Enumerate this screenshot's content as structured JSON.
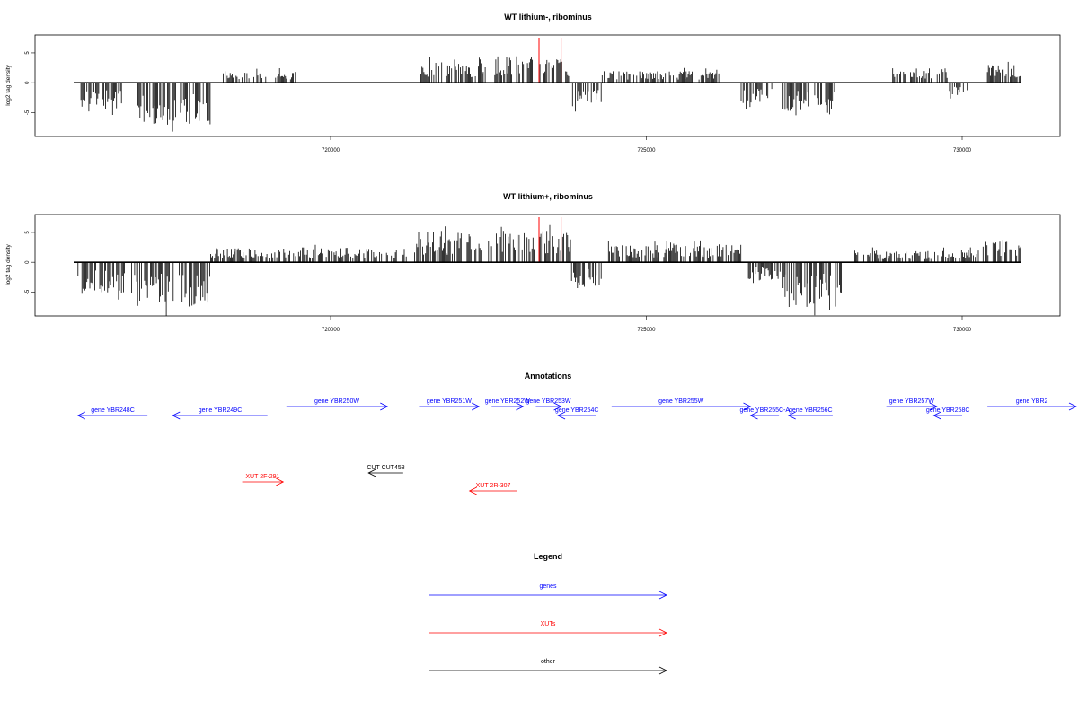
{
  "colors": {
    "genes": "#0000ff",
    "xuts": "#ff0000",
    "other": "#000000",
    "bars": "#000000",
    "markers": "#ff0000"
  },
  "chart_data": [
    {
      "type": "bar",
      "title": "WT lithium-, ribominus",
      "ylabel": "log2 tag density",
      "xlim": [
        716000,
        732000
      ],
      "ylim": [
        -9,
        8
      ],
      "xticks": [
        720000,
        725000,
        730000
      ],
      "xtick_labels": [
        "720000",
        "725000",
        "730000"
      ],
      "yticks": [
        -5,
        0,
        5
      ],
      "ytick_labels": [
        "-5",
        "0",
        "5"
      ],
      "markers_x": [
        723300,
        723650
      ],
      "segments": [
        {
          "x": [
            716000,
            716700
          ],
          "y": -4.5
        },
        {
          "x": [
            716950,
            718100
          ],
          "y": -7.0
        },
        {
          "x": [
            718300,
            719500
          ],
          "y": 2.0
        },
        {
          "x": [
            721400,
            722500
          ],
          "y": 3.5
        },
        {
          "x": [
            722600,
            723200
          ],
          "y": 4.5
        },
        {
          "x": [
            723300,
            723800
          ],
          "y": 4.0
        },
        {
          "x": [
            723800,
            724300
          ],
          "y": -4.0
        },
        {
          "x": [
            724300,
            726200
          ],
          "y": 2.0
        },
        {
          "x": [
            726500,
            727000
          ],
          "y": -3.5
        },
        {
          "x": [
            727150,
            728000
          ],
          "y": -5.5
        },
        {
          "x": [
            728900,
            729800
          ],
          "y": 2.5
        },
        {
          "x": [
            729800,
            730100
          ],
          "y": -2.5
        },
        {
          "x": [
            730400,
            731000
          ],
          "y": 3.0
        }
      ]
    },
    {
      "type": "bar",
      "title": "WT lithium+, ribominus",
      "ylabel": "log2 tag density",
      "xlim": [
        716000,
        732000
      ],
      "ylim": [
        -9,
        8
      ],
      "xticks": [
        720000,
        725000,
        730000
      ],
      "xtick_labels": [
        "720000",
        "725000",
        "730000"
      ],
      "yticks": [
        -5,
        0,
        5
      ],
      "ytick_labels": [
        "-5",
        "0",
        "5"
      ],
      "markers_x": [
        723300,
        723650
      ],
      "segments": [
        {
          "x": [
            716000,
            716750
          ],
          "y": -5.5
        },
        {
          "x": [
            716850,
            718100
          ],
          "y": -7.5
        },
        {
          "x": [
            718100,
            721200
          ],
          "y": 2.5
        },
        {
          "x": [
            721300,
            722400
          ],
          "y": 5.0
        },
        {
          "x": [
            722500,
            723800
          ],
          "y": 5.5
        },
        {
          "x": [
            723800,
            724300
          ],
          "y": -4.5
        },
        {
          "x": [
            724400,
            726500
          ],
          "y": 3.0
        },
        {
          "x": [
            726600,
            727200
          ],
          "y": -3.0
        },
        {
          "x": [
            727150,
            728100
          ],
          "y": -7.5
        },
        {
          "x": [
            728300,
            730300
          ],
          "y": 2.0
        },
        {
          "x": [
            730300,
            731000
          ],
          "y": 3.5
        }
      ]
    }
  ],
  "annotations": {
    "title": "Annotations",
    "items": [
      {
        "label": "gene YBR248C",
        "x1": 716000,
        "x2": 717100,
        "dir": "left",
        "row": 1,
        "cat": "genes"
      },
      {
        "label": "gene YBR249C",
        "x1": 717500,
        "x2": 719000,
        "dir": "left",
        "row": 1,
        "cat": "genes"
      },
      {
        "label": "gene YBR250W",
        "x1": 719300,
        "x2": 720900,
        "dir": "right",
        "row": 0,
        "cat": "genes"
      },
      {
        "label": "gene YBR251W",
        "x1": 721400,
        "x2": 722350,
        "dir": "right",
        "row": 0,
        "cat": "genes"
      },
      {
        "label": "gene YBR252W",
        "x1": 722550,
        "x2": 723050,
        "dir": "right",
        "row": 0,
        "cat": "genes"
      },
      {
        "label": "gene YBR253W",
        "x1": 723250,
        "x2": 723650,
        "dir": "right",
        "row": 0,
        "cat": "genes"
      },
      {
        "label": "gene YBR254C",
        "x1": 723600,
        "x2": 724200,
        "dir": "left",
        "row": 1,
        "cat": "genes"
      },
      {
        "label": "gene YBR255W",
        "x1": 724450,
        "x2": 726650,
        "dir": "right",
        "row": 0,
        "cat": "genes"
      },
      {
        "label": "gene YBR255C-A",
        "x1": 726650,
        "x2": 727100,
        "dir": "left",
        "row": 1,
        "cat": "genes"
      },
      {
        "label": "gene YBR256C",
        "x1": 727250,
        "x2": 727950,
        "dir": "left",
        "row": 1,
        "cat": "genes"
      },
      {
        "label": "gene YBR257W",
        "x1": 728800,
        "x2": 729600,
        "dir": "right",
        "row": 0,
        "cat": "genes"
      },
      {
        "label": "gene YBR258C",
        "x1": 729550,
        "x2": 730000,
        "dir": "left",
        "row": 1,
        "cat": "genes"
      },
      {
        "label": "gene YBR2",
        "x1": 730400,
        "x2": 732000,
        "dir": "right",
        "row": 0,
        "cat": "genes"
      },
      {
        "label": "XUT 2F-291",
        "x1": 718600,
        "x2": 719250,
        "dir": "right",
        "row": 3,
        "cat": "xuts"
      },
      {
        "label": "CUT CUT458",
        "x1": 720600,
        "x2": 721150,
        "dir": "left",
        "row": 2,
        "cat": "other"
      },
      {
        "label": "XUT 2R-307",
        "x1": 722200,
        "x2": 722950,
        "dir": "left",
        "row": 4,
        "cat": "xuts"
      }
    ]
  },
  "legend": {
    "title": "Legend",
    "items": [
      {
        "label": "genes",
        "cat": "genes"
      },
      {
        "label": "XUTs",
        "cat": "xuts"
      },
      {
        "label": "other",
        "cat": "other"
      }
    ]
  }
}
